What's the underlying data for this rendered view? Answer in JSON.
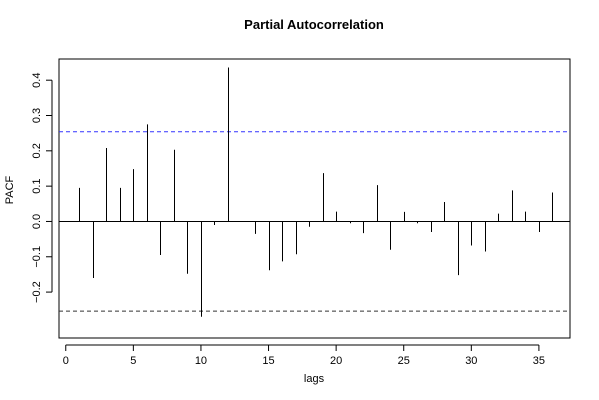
{
  "chart_data": {
    "type": "bar",
    "title": "Partial Autocorrelation",
    "xlabel": "lags",
    "ylabel": "PACF",
    "xlim": [
      -0.5,
      37.3
    ],
    "ylim": [
      -0.33,
      0.46
    ],
    "x_ticks": [
      0,
      5,
      10,
      15,
      20,
      25,
      30,
      35
    ],
    "y_ticks": [
      -0.2,
      -0.1,
      0.0,
      0.1,
      0.2,
      0.3,
      0.4
    ],
    "y_tick_labels": [
      "−0.2",
      "−0.1",
      "0.0",
      "0.1",
      "0.2",
      "0.3",
      "0.4"
    ],
    "confidence_limit": 0.254,
    "confidence_colors": {
      "upper": "#3333ff",
      "lower": "#333333"
    },
    "series": [
      {
        "lags": [
          1,
          2,
          3,
          4,
          5,
          6,
          7,
          8,
          9,
          10,
          11,
          12,
          13,
          14,
          15,
          16,
          17,
          18,
          19,
          20,
          21,
          22,
          23,
          24,
          25,
          26,
          27,
          28,
          29,
          30,
          31,
          32,
          33,
          34,
          35,
          36
        ],
        "values": [
          0.095,
          -0.16,
          0.208,
          0.095,
          0.148,
          0.275,
          -0.095,
          0.203,
          -0.148,
          -0.27,
          -0.01,
          0.436,
          0.0,
          -0.035,
          -0.138,
          -0.113,
          -0.093,
          -0.015,
          0.137,
          0.028,
          -0.005,
          -0.033,
          0.103,
          -0.08,
          0.027,
          -0.005,
          -0.03,
          0.055,
          -0.152,
          -0.068,
          -0.085,
          0.022,
          0.088,
          0.028,
          -0.03,
          0.082
        ]
      }
    ]
  }
}
